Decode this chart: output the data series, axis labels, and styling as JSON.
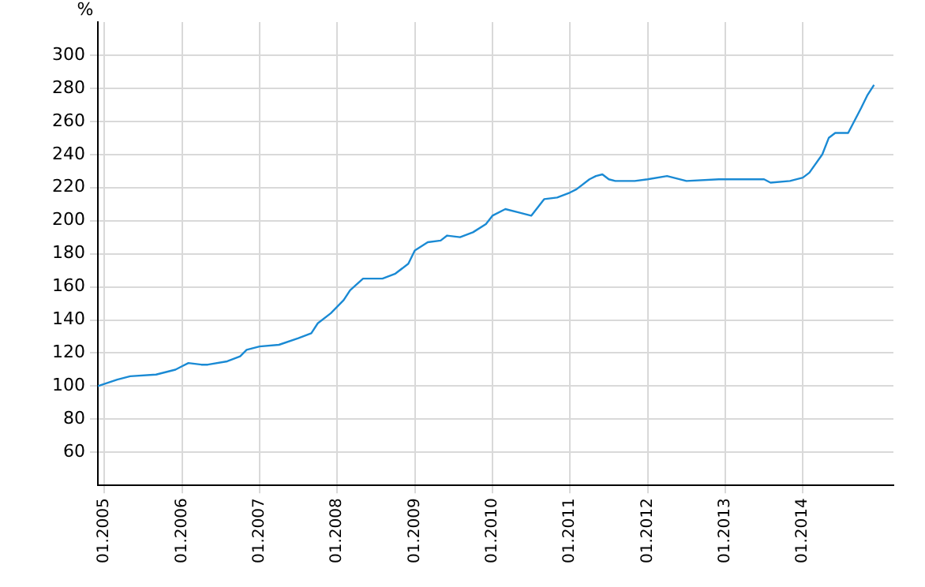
{
  "chart_data": {
    "type": "line",
    "ylabel": "%",
    "x": [
      "2004-12",
      "2005-03",
      "2005-05",
      "2005-09",
      "2005-12",
      "2006-01",
      "2006-02",
      "2006-04",
      "2006-05",
      "2006-08",
      "2006-10",
      "2006-11",
      "2007-01",
      "2007-04",
      "2007-07",
      "2007-09",
      "2007-10",
      "2007-12",
      "2008-02",
      "2008-03",
      "2008-05",
      "2008-08",
      "2008-10",
      "2008-12",
      "2009-01",
      "2009-03",
      "2009-05",
      "2009-06",
      "2009-08",
      "2009-10",
      "2009-12",
      "2010-01",
      "2010-03",
      "2010-05",
      "2010-07",
      "2010-08",
      "2010-09",
      "2010-11",
      "2011-01",
      "2011-02",
      "2011-04",
      "2011-05",
      "2011-06",
      "2011-07",
      "2011-08",
      "2011-11",
      "2012-01",
      "2012-04",
      "2012-07",
      "2012-12",
      "2013-07",
      "2013-08",
      "2013-11",
      "2014-01",
      "2014-02",
      "2014-04",
      "2014-05",
      "2014-06",
      "2014-08",
      "2014-10",
      "2014-11",
      "2014-12"
    ],
    "series": [
      {
        "color": "#1a8ad4",
        "values": [
          100,
          104,
          106,
          107,
          110,
          112,
          114,
          113,
          113,
          115,
          118,
          122,
          124,
          125,
          129,
          132,
          138,
          144,
          152,
          158,
          165,
          165,
          168,
          174,
          182,
          187,
          188,
          191,
          190,
          193,
          198,
          203,
          207,
          205,
          203,
          208,
          213,
          214,
          217,
          219,
          225,
          227,
          228,
          225,
          224,
          224,
          225,
          227,
          224,
          225,
          225,
          223,
          224,
          226,
          229,
          240,
          250,
          253,
          253,
          268,
          276,
          282
        ]
      }
    ],
    "xlim": [
      "2004-12",
      "2015-03"
    ],
    "xticks": [
      {
        "value": "2005-01",
        "label": "01.2005"
      },
      {
        "value": "2006-01",
        "label": "01.2006"
      },
      {
        "value": "2007-01",
        "label": "01.2007"
      },
      {
        "value": "2008-01",
        "label": "01.2008"
      },
      {
        "value": "2009-01",
        "label": "01.2009"
      },
      {
        "value": "2010-01",
        "label": "01.2010"
      },
      {
        "value": "2011-01",
        "label": "01.2011"
      },
      {
        "value": "2012-01",
        "label": "01.2012"
      },
      {
        "value": "2013-01",
        "label": "01.2013"
      },
      {
        "value": "2014-01",
        "label": "01.2014"
      }
    ],
    "ylim": [
      40,
      320
    ],
    "yticks": [
      60,
      80,
      100,
      120,
      140,
      160,
      180,
      200,
      220,
      240,
      260,
      280,
      300
    ],
    "grid": true,
    "legend": false,
    "marker": "none",
    "line_style": "solid"
  }
}
